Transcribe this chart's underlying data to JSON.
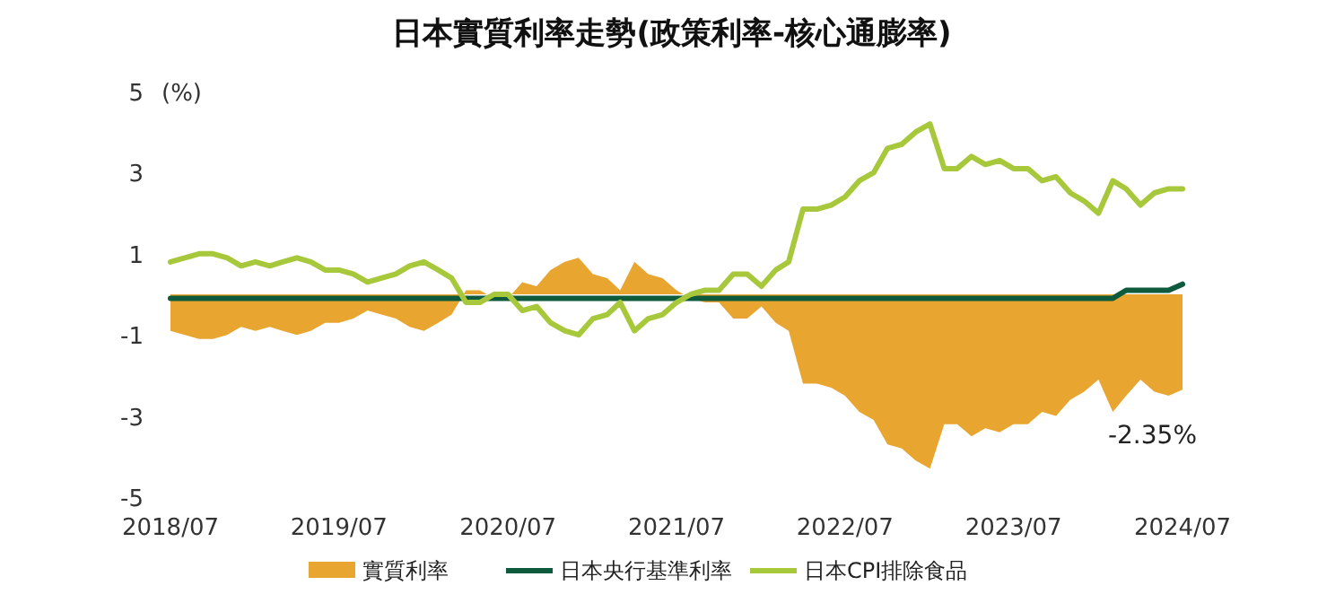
{
  "chart_data": {
    "type": "line",
    "title": "日本實質利率走勢(政策利率-核心通膨率)",
    "ylabel": "(%)",
    "x": [
      "2018-07",
      "2018-08",
      "2018-09",
      "2018-10",
      "2018-11",
      "2018-12",
      "2019-01",
      "2019-02",
      "2019-03",
      "2019-04",
      "2019-05",
      "2019-06",
      "2019-07",
      "2019-08",
      "2019-09",
      "2019-10",
      "2019-11",
      "2019-12",
      "2020-01",
      "2020-02",
      "2020-03",
      "2020-04",
      "2020-05",
      "2020-06",
      "2020-07",
      "2020-08",
      "2020-09",
      "2020-10",
      "2020-11",
      "2020-12",
      "2021-01",
      "2021-02",
      "2021-03",
      "2021-04",
      "2021-05",
      "2021-06",
      "2021-07",
      "2021-08",
      "2021-09",
      "2021-10",
      "2021-11",
      "2021-12",
      "2022-01",
      "2022-02",
      "2022-03",
      "2022-04",
      "2022-05",
      "2022-06",
      "2022-07",
      "2022-08",
      "2022-09",
      "2022-10",
      "2022-11",
      "2022-12",
      "2023-01",
      "2023-02",
      "2023-03",
      "2023-04",
      "2023-05",
      "2023-06",
      "2023-07",
      "2023-08",
      "2023-09",
      "2023-10",
      "2023-11",
      "2023-12",
      "2024-01",
      "2024-02",
      "2024-03",
      "2024-04",
      "2024-05",
      "2024-06",
      "2024-07"
    ],
    "series": [
      {
        "name": "實質利率",
        "type": "area",
        "color": "#e8a530",
        "values": [
          -0.9,
          -1.0,
          -1.1,
          -1.1,
          -1.0,
          -0.8,
          -0.9,
          -0.8,
          -0.9,
          -1.0,
          -0.9,
          -0.7,
          -0.7,
          -0.6,
          -0.4,
          -0.5,
          -0.6,
          -0.8,
          -0.9,
          -0.7,
          -0.5,
          0.1,
          0.1,
          -0.1,
          -0.1,
          0.3,
          0.2,
          0.6,
          0.8,
          0.9,
          0.5,
          0.4,
          0.1,
          0.8,
          0.5,
          0.4,
          0.1,
          -0.1,
          -0.2,
          -0.2,
          -0.6,
          -0.6,
          -0.3,
          -0.7,
          -0.9,
          -2.2,
          -2.2,
          -2.3,
          -2.5,
          -2.9,
          -3.1,
          -3.7,
          -3.8,
          -4.1,
          -4.3,
          -3.2,
          -3.2,
          -3.5,
          -3.3,
          -3.4,
          -3.2,
          -3.2,
          -2.9,
          -3.0,
          -2.6,
          -2.4,
          -2.1,
          -2.9,
          -2.5,
          -2.1,
          -2.4,
          -2.5,
          -2.35
        ]
      },
      {
        "name": "日本央行基準利率",
        "color": "#0e5a3c",
        "values": [
          -0.1,
          -0.1,
          -0.1,
          -0.1,
          -0.1,
          -0.1,
          -0.1,
          -0.1,
          -0.1,
          -0.1,
          -0.1,
          -0.1,
          -0.1,
          -0.1,
          -0.1,
          -0.1,
          -0.1,
          -0.1,
          -0.1,
          -0.1,
          -0.1,
          -0.1,
          -0.1,
          -0.1,
          -0.1,
          -0.1,
          -0.1,
          -0.1,
          -0.1,
          -0.1,
          -0.1,
          -0.1,
          -0.1,
          -0.1,
          -0.1,
          -0.1,
          -0.1,
          -0.1,
          -0.1,
          -0.1,
          -0.1,
          -0.1,
          -0.1,
          -0.1,
          -0.1,
          -0.1,
          -0.1,
          -0.1,
          -0.1,
          -0.1,
          -0.1,
          -0.1,
          -0.1,
          -0.1,
          -0.1,
          -0.1,
          -0.1,
          -0.1,
          -0.1,
          -0.1,
          -0.1,
          -0.1,
          -0.1,
          -0.1,
          -0.1,
          -0.1,
          -0.1,
          -0.1,
          0.1,
          0.1,
          0.1,
          0.1,
          0.25
        ]
      },
      {
        "name": "日本CPI排除食品",
        "color": "#a8c83c",
        "values": [
          0.8,
          0.9,
          1.0,
          1.0,
          0.9,
          0.7,
          0.8,
          0.7,
          0.8,
          0.9,
          0.8,
          0.6,
          0.6,
          0.5,
          0.3,
          0.4,
          0.5,
          0.7,
          0.8,
          0.6,
          0.4,
          -0.2,
          -0.2,
          0.0,
          0.0,
          -0.4,
          -0.3,
          -0.7,
          -0.9,
          -1.0,
          -0.6,
          -0.5,
          -0.2,
          -0.9,
          -0.6,
          -0.5,
          -0.2,
          0.0,
          0.1,
          0.1,
          0.5,
          0.5,
          0.2,
          0.6,
          0.8,
          2.1,
          2.1,
          2.2,
          2.4,
          2.8,
          3.0,
          3.6,
          3.7,
          4.0,
          4.2,
          3.1,
          3.1,
          3.4,
          3.2,
          3.3,
          3.1,
          3.1,
          2.8,
          2.9,
          2.5,
          2.3,
          2.0,
          2.8,
          2.6,
          2.2,
          2.5,
          2.6,
          2.6
        ]
      }
    ],
    "xlim": [
      "2018-07",
      "2024-07"
    ],
    "xticks": [
      {
        "value": "2018-07",
        "label": "2018/07"
      },
      {
        "value": "2019-07",
        "label": "2019/07"
      },
      {
        "value": "2020-07",
        "label": "2020/07"
      },
      {
        "value": "2021-07",
        "label": "2021/07"
      },
      {
        "value": "2022-07",
        "label": "2022/07"
      },
      {
        "value": "2023-07",
        "label": "2023/07"
      },
      {
        "value": "2024-07",
        "label": "2024/07"
      }
    ],
    "ylim": [
      -5,
      5
    ],
    "yticks": [
      -5,
      -3,
      -1,
      1,
      3,
      5
    ],
    "annotations": [
      {
        "text": "-2.35%",
        "x": "2024-07",
        "y": -2.35
      }
    ],
    "legend": "bottom",
    "grid": false,
    "line_style": "solid",
    "marker": "none"
  }
}
